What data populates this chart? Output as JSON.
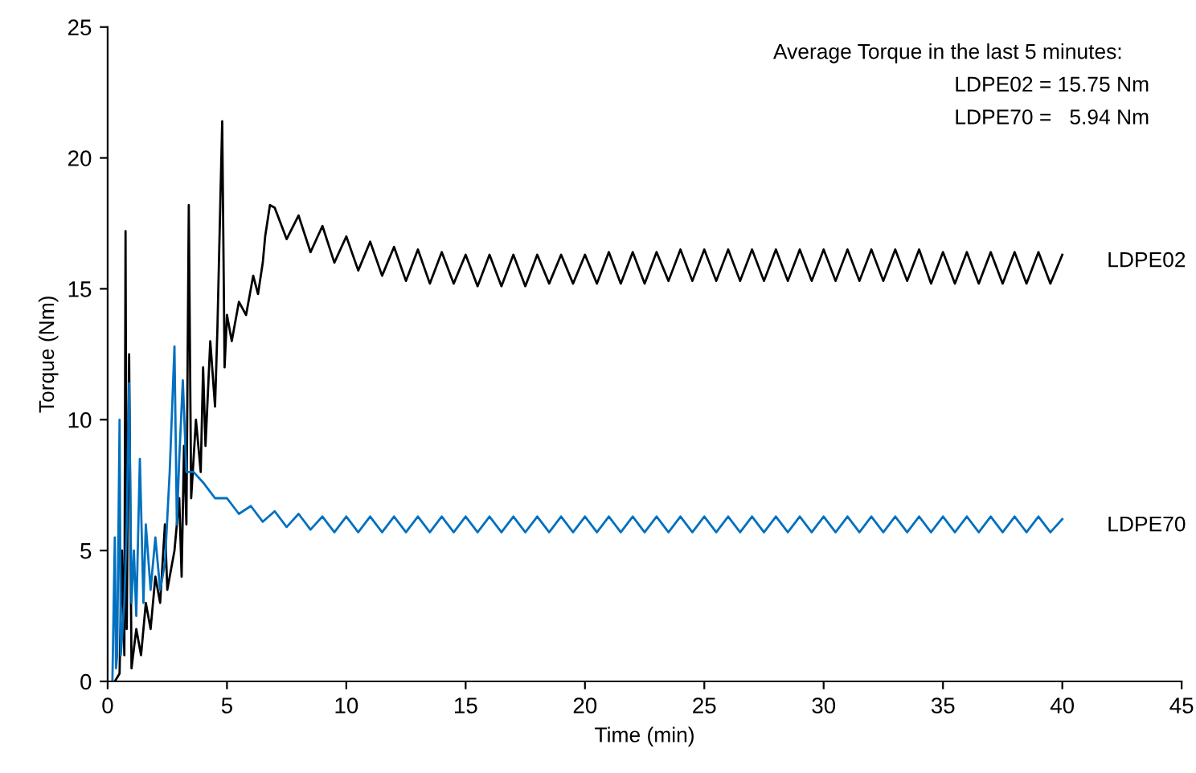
{
  "chart_data": {
    "type": "line",
    "xlabel": "Time (min)",
    "ylabel": "Torque (Nm)",
    "xlim": [
      0,
      45
    ],
    "ylim": [
      0,
      25
    ],
    "xticks": [
      0,
      5,
      10,
      15,
      20,
      25,
      30,
      35,
      40,
      45
    ],
    "yticks": [
      0,
      5,
      10,
      15,
      20,
      25
    ],
    "grid": false,
    "legend": false,
    "marker": "none",
    "line_style": "solid",
    "annotations": [
      "Average Torque in the last 5 minutes:",
      "LDPE02 = 15.75 Nm",
      "LDPE70 =   5.94 Nm"
    ],
    "series": [
      {
        "name": "LDPE02",
        "color": "#000000",
        "x": [
          0.3,
          0.5,
          0.6,
          0.7,
          0.75,
          0.8,
          0.9,
          1.0,
          1.2,
          1.4,
          1.6,
          1.8,
          2.0,
          2.2,
          2.4,
          2.5,
          2.8,
          3.0,
          3.1,
          3.2,
          3.3,
          3.4,
          3.5,
          3.7,
          3.9,
          4.0,
          4.1,
          4.3,
          4.5,
          4.6,
          4.8,
          4.9,
          5.0,
          5.2,
          5.5,
          5.8,
          6.1,
          6.3,
          6.5,
          6.6,
          6.8,
          7.0,
          7.5,
          8.0,
          8.5,
          9.0,
          9.5,
          10.0,
          10.5,
          11.0,
          11.5,
          12.0,
          12.5,
          13.0,
          13.5,
          14.0,
          14.5,
          15.0,
          15.5,
          16.0,
          16.5,
          17.0,
          17.5,
          18.0,
          18.5,
          19.0,
          19.5,
          20.0,
          20.5,
          21.0,
          21.5,
          22.0,
          22.5,
          23.0,
          23.5,
          24.0,
          24.5,
          25.0,
          25.5,
          26.0,
          26.5,
          27.0,
          27.5,
          28.0,
          28.5,
          29.0,
          29.5,
          30.0,
          30.5,
          31.0,
          31.5,
          32.0,
          32.5,
          33.0,
          33.5,
          34.0,
          34.5,
          35.0,
          35.5,
          36.0,
          36.5,
          37.0,
          37.5,
          38.0,
          38.5,
          39.0,
          39.5,
          40.0
        ],
        "values": [
          0,
          0.3,
          5,
          1,
          17.2,
          2,
          12.5,
          0.5,
          2,
          1,
          3,
          2,
          4,
          3,
          6,
          3.5,
          5,
          7,
          4,
          9,
          6,
          18.2,
          7,
          10,
          8,
          12,
          9,
          13,
          10.5,
          13.5,
          21.4,
          12,
          14,
          13,
          14.5,
          14,
          15.5,
          14.8,
          16,
          17,
          18.2,
          18.1,
          16.9,
          17.8,
          16.4,
          17.4,
          16.0,
          17.0,
          15.7,
          16.8,
          15.5,
          16.6,
          15.3,
          16.5,
          15.2,
          16.4,
          15.2,
          16.3,
          15.1,
          16.3,
          15.1,
          16.3,
          15.1,
          16.3,
          15.2,
          16.3,
          15.2,
          16.3,
          15.2,
          16.4,
          15.2,
          16.4,
          15.2,
          16.4,
          15.3,
          16.5,
          15.3,
          16.5,
          15.3,
          16.5,
          15.3,
          16.5,
          15.3,
          16.5,
          15.3,
          16.5,
          15.3,
          16.5,
          15.3,
          16.5,
          15.3,
          16.5,
          15.3,
          16.5,
          15.3,
          16.5,
          15.2,
          16.4,
          15.2,
          16.4,
          15.2,
          16.4,
          15.2,
          16.4,
          15.2,
          16.4,
          15.2,
          16.3
        ]
      },
      {
        "name": "LDPE70",
        "color": "#0070c0",
        "x": [
          0.2,
          0.3,
          0.35,
          0.4,
          0.5,
          0.55,
          0.7,
          0.8,
          0.9,
          1.0,
          1.1,
          1.2,
          1.35,
          1.5,
          1.6,
          1.8,
          2.0,
          2.2,
          2.4,
          2.6,
          2.8,
          2.9,
          3.0,
          3.15,
          3.3,
          3.6,
          4.0,
          4.5,
          5.0,
          5.5,
          6.0,
          6.5,
          7.0,
          7.5,
          8.0,
          8.5,
          9.0,
          9.5,
          10.0,
          10.5,
          11.0,
          11.5,
          12.0,
          12.5,
          13.0,
          13.5,
          14.0,
          14.5,
          15.0,
          15.5,
          16.0,
          16.5,
          17.0,
          17.5,
          18.0,
          18.5,
          19.0,
          19.5,
          20.0,
          20.5,
          21.0,
          21.5,
          22.0,
          22.5,
          23.0,
          23.5,
          24.0,
          24.5,
          25.0,
          25.5,
          26.0,
          26.5,
          27.0,
          27.5,
          28.0,
          28.5,
          29.0,
          29.5,
          30.0,
          30.5,
          31.0,
          31.5,
          32.0,
          32.5,
          33.0,
          33.5,
          34.0,
          34.5,
          35.0,
          35.5,
          36.0,
          36.5,
          37.0,
          37.5,
          38.0,
          38.5,
          39.0,
          39.5,
          40.0
        ],
        "values": [
          0,
          5.5,
          0.5,
          1,
          10,
          1,
          3,
          6,
          11.4,
          3,
          5,
          2.5,
          8.5,
          3,
          6,
          3.5,
          5.5,
          3.5,
          4.5,
          8,
          12.8,
          6,
          8.5,
          11.5,
          8,
          8,
          7.6,
          7.0,
          7.0,
          6.4,
          6.7,
          6.1,
          6.5,
          5.9,
          6.4,
          5.8,
          6.3,
          5.7,
          6.3,
          5.7,
          6.3,
          5.7,
          6.3,
          5.7,
          6.3,
          5.7,
          6.3,
          5.7,
          6.3,
          5.7,
          6.3,
          5.7,
          6.3,
          5.7,
          6.3,
          5.7,
          6.3,
          5.7,
          6.3,
          5.7,
          6.3,
          5.7,
          6.3,
          5.7,
          6.3,
          5.7,
          6.3,
          5.7,
          6.3,
          5.7,
          6.3,
          5.7,
          6.3,
          5.7,
          6.3,
          5.7,
          6.3,
          5.7,
          6.3,
          5.7,
          6.3,
          5.7,
          6.3,
          5.7,
          6.3,
          5.7,
          6.3,
          5.7,
          6.3,
          5.7,
          6.3,
          5.7,
          6.3,
          5.7,
          6.3,
          5.7,
          6.3,
          5.7,
          6.2
        ]
      }
    ]
  }
}
